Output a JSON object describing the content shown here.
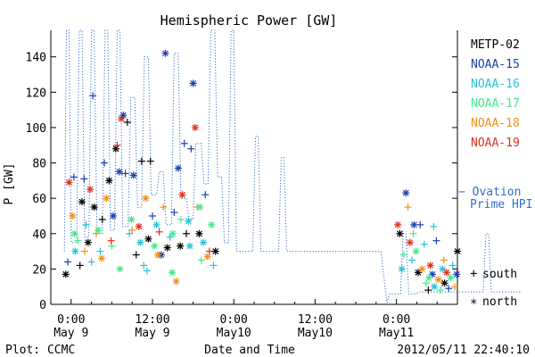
{
  "chart_data": {
    "type": "scatter",
    "title": "Hemispheric Power [GW]",
    "ylabel": "P [GW]",
    "xlabel": "Date and Time",
    "ylim": [
      0,
      155
    ],
    "yticks": [
      0,
      20,
      40,
      60,
      80,
      100,
      120,
      140
    ],
    "xlim_hours": [
      -3,
      57
    ],
    "xticks": [
      {
        "hour": 0,
        "line1": "0:00",
        "line2": "May 9"
      },
      {
        "hour": 12,
        "line1": "12:00",
        "line2": "May 9"
      },
      {
        "hour": 24,
        "line1": "0:00",
        "line2": "May10"
      },
      {
        "hour": 36,
        "line1": "12:00",
        "line2": "May10"
      },
      {
        "hour": 48,
        "line1": "0:00",
        "line2": "May11"
      },
      {
        "hour": 60,
        "line1": "12:00",
        "line2": "May11"
      }
    ],
    "footer_left": "Plot: CCMC",
    "footer_right": "2012/05/11 22:40:10",
    "legend": {
      "satellites": [
        {
          "name": "METP-02",
          "color": "#000000"
        },
        {
          "name": "NOAA-15",
          "color": "#1a3fb0"
        },
        {
          "name": "NOAA-16",
          "color": "#28c2dc"
        },
        {
          "name": "NOAA-17",
          "color": "#44e88c"
        },
        {
          "name": "NOAA-18",
          "color": "#f0901c"
        },
        {
          "name": "NOAA-19",
          "color": "#e0301c"
        }
      ],
      "ovation_label_1": "Ovation",
      "ovation_label_2": "Prime HPI",
      "ovation_color": "#2f6fd0",
      "south_symbol": "+",
      "south_label": "south",
      "north_symbol": "*",
      "north_label": "north"
    },
    "ovation_series": [
      [
        -1,
        30
      ],
      [
        -0.7,
        155
      ],
      [
        -0.3,
        155
      ],
      [
        0,
        35
      ],
      [
        0.8,
        35
      ],
      [
        1.2,
        155
      ],
      [
        1.6,
        155
      ],
      [
        2,
        38
      ],
      [
        2.6,
        38
      ],
      [
        3,
        155
      ],
      [
        3.4,
        155
      ],
      [
        3.8,
        40
      ],
      [
        4.6,
        40
      ],
      [
        5,
        155
      ],
      [
        5.4,
        155
      ],
      [
        5.8,
        42
      ],
      [
        6.4,
        42
      ],
      [
        6.8,
        155
      ],
      [
        7.2,
        155
      ],
      [
        7.6,
        44
      ],
      [
        8.4,
        44
      ],
      [
        8.8,
        117
      ],
      [
        9.4,
        117
      ],
      [
        9.8,
        55
      ],
      [
        10.4,
        55
      ],
      [
        10.8,
        140
      ],
      [
        11.4,
        140
      ],
      [
        11.8,
        62
      ],
      [
        12.6,
        62
      ],
      [
        13,
        75
      ],
      [
        13.6,
        75
      ],
      [
        14,
        45
      ],
      [
        14.8,
        45
      ],
      [
        15.2,
        142
      ],
      [
        15.8,
        142
      ],
      [
        16.2,
        60
      ],
      [
        17,
        60
      ],
      [
        17.4,
        48
      ],
      [
        18,
        48
      ],
      [
        18.4,
        91
      ],
      [
        19.2,
        91
      ],
      [
        19.6,
        68
      ],
      [
        20.2,
        68
      ],
      [
        20.6,
        155
      ],
      [
        21.2,
        155
      ],
      [
        21.6,
        72
      ],
      [
        22.2,
        72
      ],
      [
        22.6,
        35
      ],
      [
        23.2,
        35
      ],
      [
        23.6,
        155
      ],
      [
        24,
        155
      ],
      [
        24.4,
        30
      ],
      [
        26.8,
        30
      ],
      [
        27.2,
        95
      ],
      [
        27.6,
        95
      ],
      [
        28,
        30
      ],
      [
        30.6,
        30
      ],
      [
        31,
        83
      ],
      [
        31.4,
        83
      ],
      [
        31.8,
        30
      ],
      [
        34,
        30
      ],
      [
        40,
        30
      ],
      [
        45.7,
        30
      ],
      [
        46.6,
        1
      ],
      [
        47,
        6
      ],
      [
        48.6,
        6
      ],
      [
        49,
        40
      ],
      [
        49.4,
        40
      ],
      [
        49.8,
        6
      ],
      [
        51,
        6
      ],
      [
        51.4,
        7
      ],
      [
        60.8,
        7
      ],
      [
        61.2,
        40
      ],
      [
        61.6,
        40
      ],
      [
        62,
        7
      ],
      [
        66.3,
        7
      ]
    ],
    "points_hours_value_color_marker": [
      [
        -0.8,
        17,
        "#000000",
        "*"
      ],
      [
        -0.5,
        24,
        "#1a3fb0",
        "+"
      ],
      [
        -0.3,
        69,
        "#e0301c",
        "*"
      ],
      [
        0.2,
        50,
        "#f0901c",
        "*"
      ],
      [
        0.4,
        72,
        "#1a3fb0",
        "+"
      ],
      [
        0.6,
        30,
        "#28c2dc",
        "*"
      ],
      [
        1,
        36,
        "#44e88c",
        "+"
      ],
      [
        1.3,
        22,
        "#000000",
        "+"
      ],
      [
        1.6,
        58,
        "#000000",
        "*"
      ],
      [
        1.9,
        71,
        "#1a3fb0",
        "+"
      ],
      [
        2.2,
        45,
        "#28c2dc",
        "+"
      ],
      [
        2.5,
        35,
        "#000000",
        "*"
      ],
      [
        2.8,
        65,
        "#e0301c",
        "*"
      ],
      [
        3.2,
        118,
        "#1a3fb0",
        "+"
      ],
      [
        3.4,
        55,
        "#000000",
        "*"
      ],
      [
        3.7,
        40,
        "#f0901c",
        "+"
      ],
      [
        4,
        42,
        "#44e88c",
        "*"
      ],
      [
        4.3,
        30,
        "#28c2dc",
        "+"
      ],
      [
        4.6,
        48,
        "#000000",
        "+"
      ],
      [
        4.9,
        80,
        "#1a3fb0",
        "+"
      ],
      [
        5.2,
        60,
        "#f0901c",
        "*"
      ],
      [
        5.6,
        70,
        "#000000",
        "*"
      ],
      [
        5.9,
        36,
        "#e0301c",
        "+"
      ],
      [
        6.2,
        50,
        "#1a3fb0",
        "*"
      ],
      [
        6.6,
        88,
        "#000000",
        "*"
      ],
      [
        6.8,
        90,
        "#e0301c",
        "+"
      ],
      [
        7.1,
        75,
        "#1a3fb0",
        "*"
      ],
      [
        7.4,
        105,
        "#e0301c",
        "*"
      ],
      [
        7.7,
        107,
        "#1a3fb0",
        "*"
      ],
      [
        8,
        74,
        "#1a3fb0",
        "+"
      ],
      [
        8.3,
        103,
        "#000000",
        "+"
      ],
      [
        8.6,
        40,
        "#28c2dc",
        "+"
      ],
      [
        8.9,
        48,
        "#44e88c",
        "*"
      ],
      [
        9.2,
        73,
        "#1a3fb0",
        "*"
      ],
      [
        9.6,
        28,
        "#000000",
        "+"
      ],
      [
        10,
        44,
        "#e0301c",
        "*"
      ],
      [
        10.4,
        81,
        "#000000",
        "+"
      ],
      [
        10.7,
        22,
        "#28c2dc",
        "+"
      ],
      [
        11,
        60,
        "#f0901c",
        "*"
      ],
      [
        11.4,
        37,
        "#000000",
        "*"
      ],
      [
        11.7,
        81,
        "#000000",
        "+"
      ],
      [
        12,
        50,
        "#1a3fb0",
        "+"
      ],
      [
        12.3,
        33,
        "#44e88c",
        "*"
      ],
      [
        12.6,
        45,
        "#28c2dc",
        "*"
      ],
      [
        13,
        41,
        "#e0301c",
        "+"
      ],
      [
        13.3,
        28,
        "#1a3fb0",
        "*"
      ],
      [
        13.6,
        55,
        "#f0901c",
        "+"
      ],
      [
        13.9,
        142,
        "#1a3fb0",
        "*"
      ],
      [
        14.2,
        32,
        "#000000",
        "*"
      ],
      [
        14.6,
        38,
        "#28c2dc",
        "+"
      ],
      [
        14.9,
        18,
        "#44e88c",
        "*"
      ],
      [
        15.2,
        52,
        "#1a3fb0",
        "+"
      ],
      [
        15.5,
        13,
        "#f0901c",
        "*"
      ],
      [
        15.8,
        77,
        "#1a3fb0",
        "*"
      ],
      [
        16.1,
        33,
        "#000000",
        "*"
      ],
      [
        16.4,
        62,
        "#e0301c",
        "*"
      ],
      [
        16.7,
        91,
        "#1a3fb0",
        "+"
      ],
      [
        17,
        40,
        "#000000",
        "+"
      ],
      [
        17.3,
        47,
        "#28c2dc",
        "*"
      ],
      [
        17.7,
        88,
        "#1a3fb0",
        "+"
      ],
      [
        18,
        125,
        "#1a3fb0",
        "*"
      ],
      [
        18.3,
        100,
        "#e0301c",
        "*"
      ],
      [
        18.6,
        55,
        "#f0901c",
        "+"
      ],
      [
        18.9,
        40,
        "#000000",
        "*"
      ],
      [
        19.2,
        25,
        "#44e88c",
        "+"
      ],
      [
        19.5,
        35,
        "#28c2dc",
        "*"
      ],
      [
        19.8,
        62,
        "#1a3fb0",
        "+"
      ],
      [
        20.1,
        27,
        "#f0901c",
        "*"
      ],
      [
        20.4,
        30,
        "#e0301c",
        "+"
      ],
      [
        20.7,
        45,
        "#44e88c",
        "*"
      ],
      [
        21,
        22,
        "#28c2dc",
        "+"
      ],
      [
        21.3,
        30,
        "#000000",
        "*"
      ],
      [
        0.5,
        40,
        "#44e88c",
        "*"
      ],
      [
        2,
        30,
        "#f0901c",
        "+"
      ],
      [
        3,
        24,
        "#28c2dc",
        "+"
      ],
      [
        6,
        33,
        "#44e88c",
        "+"
      ],
      [
        9,
        42,
        "#f0901c",
        "+"
      ],
      [
        10.2,
        35,
        "#28c2dc",
        "*"
      ],
      [
        12.8,
        28,
        "#f0901c",
        "*"
      ],
      [
        15,
        40,
        "#44e88c",
        "*"
      ],
      [
        17.5,
        33,
        "#28c2dc",
        "*"
      ],
      [
        16.2,
        48,
        "#44e88c",
        "+"
      ],
      [
        11.2,
        19,
        "#28c2dc",
        "+"
      ],
      [
        7.2,
        20,
        "#44e88c",
        "*"
      ],
      [
        4.5,
        26,
        "#f0901c",
        "*"
      ],
      [
        19,
        55,
        "#44e88c",
        "*"
      ],
      [
        48.2,
        45,
        "#e0301c",
        "*"
      ],
      [
        48.5,
        40,
        "#000000",
        "*"
      ],
      [
        48.8,
        20,
        "#28c2dc",
        "*"
      ],
      [
        49.1,
        28,
        "#44e88c",
        "+"
      ],
      [
        49.4,
        63,
        "#1a3fb0",
        "*"
      ],
      [
        49.7,
        55,
        "#f0901c",
        "+"
      ],
      [
        50,
        35,
        "#e0301c",
        "*"
      ],
      [
        50.3,
        25,
        "#28c2dc",
        "+"
      ],
      [
        50.6,
        45,
        "#1a3fb0",
        "*"
      ],
      [
        50.9,
        30,
        "#44e88c",
        "*"
      ],
      [
        51.2,
        18,
        "#000000",
        "*"
      ],
      [
        51.5,
        45,
        "#1a3fb0",
        "+"
      ],
      [
        51.8,
        20,
        "#f0901c",
        "*"
      ],
      [
        52.1,
        34,
        "#28c2dc",
        "+"
      ],
      [
        52.4,
        12,
        "#44e88c",
        "+"
      ],
      [
        52.7,
        8,
        "#000000",
        "+"
      ],
      [
        53,
        22,
        "#e0301c",
        "*"
      ],
      [
        53.3,
        17,
        "#1a3fb0",
        "*"
      ],
      [
        53.6,
        10,
        "#28c2dc",
        "*"
      ],
      [
        53.9,
        36,
        "#1a3fb0",
        "+"
      ],
      [
        54.2,
        14,
        "#f0901c",
        "*"
      ],
      [
        54.5,
        8,
        "#44e88c",
        "+"
      ],
      [
        54.8,
        20,
        "#28c2dc",
        "*"
      ],
      [
        55.1,
        12,
        "#000000",
        "*"
      ],
      [
        55.4,
        18,
        "#e0301c",
        "*"
      ],
      [
        55.7,
        9,
        "#1a3fb0",
        "+"
      ],
      [
        56,
        15,
        "#44e88c",
        "*"
      ],
      [
        56.3,
        22,
        "#28c2dc",
        "+"
      ],
      [
        56.6,
        10,
        "#f0901c",
        "+"
      ],
      [
        56.9,
        17,
        "#1a3fb0",
        "*"
      ],
      [
        57.2,
        8,
        "#000000",
        "+"
      ],
      [
        57.5,
        20,
        "#e0301c",
        "+"
      ],
      [
        57.8,
        12,
        "#28c2dc",
        "+"
      ],
      [
        58.1,
        18,
        "#1a3fb0",
        "+"
      ],
      [
        58.4,
        9,
        "#44e88c",
        "*"
      ],
      [
        58.7,
        14,
        "#f0901c",
        "*"
      ],
      [
        59,
        20,
        "#000000",
        "*"
      ],
      [
        59.3,
        10,
        "#28c2dc",
        "*"
      ],
      [
        59.6,
        15,
        "#44e88c",
        "+"
      ],
      [
        59.9,
        22,
        "#1a3fb0",
        "+"
      ],
      [
        60.2,
        8,
        "#e0301c",
        "*"
      ],
      [
        60.5,
        18,
        "#28c2dc",
        "+"
      ],
      [
        60.8,
        12,
        "#f0901c",
        "+"
      ],
      [
        61.1,
        16,
        "#1a3fb0",
        "*"
      ],
      [
        61.4,
        72,
        "#e0301c",
        "*"
      ],
      [
        61.7,
        56,
        "#1a3fb0",
        "+"
      ],
      [
        62,
        20,
        "#44e88c",
        "*"
      ],
      [
        62.3,
        29,
        "#1a3fb0",
        "*"
      ],
      [
        62.6,
        13,
        "#28c2dc",
        "+"
      ],
      [
        62.9,
        57,
        "#1a3fb0",
        "+"
      ],
      [
        63.2,
        18,
        "#000000",
        "*"
      ],
      [
        63.5,
        10,
        "#44e88c",
        "+"
      ],
      [
        63.8,
        22,
        "#f0901c",
        "*"
      ],
      [
        64.1,
        25,
        "#1a3fb0",
        "*"
      ],
      [
        53.5,
        44,
        "#28c2dc",
        "+"
      ],
      [
        52.8,
        15,
        "#44e88c",
        "*"
      ],
      [
        55,
        25,
        "#f0901c",
        "+"
      ],
      [
        57,
        30,
        "#000000",
        "*"
      ],
      [
        58.8,
        24,
        "#28c2dc",
        "+"
      ],
      [
        50.5,
        40,
        "#44e88c",
        "+"
      ]
    ]
  }
}
